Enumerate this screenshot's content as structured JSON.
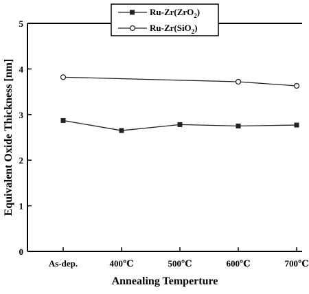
{
  "chart_data": {
    "type": "line",
    "categories": [
      "As-dep.",
      "400℃",
      "500℃",
      "600℃",
      "700℃"
    ],
    "series": [
      {
        "name": "Ru-Zr(ZrO₂)",
        "name_main": "Ru-Zr(ZrO",
        "name_sub": "2",
        "name_tail": ")",
        "marker": "square",
        "values": [
          2.87,
          2.65,
          2.78,
          2.75,
          2.77
        ]
      },
      {
        "name": "Ru-Zr(SiO₂)",
        "name_main": "Ru-Zr(SiO",
        "name_sub": "2",
        "name_tail": ")",
        "marker": "circle-open",
        "values": [
          3.82,
          null,
          null,
          3.72,
          3.63
        ]
      }
    ],
    "xlabel": "Annealing Temperture",
    "ylabel": "Equivalent Oxide Thickness [nm]",
    "ylim": [
      0,
      5
    ],
    "yticks": [
      "0",
      "1",
      "2",
      "3",
      "4",
      "5"
    ],
    "legend_position": "top-center",
    "grid": false
  }
}
